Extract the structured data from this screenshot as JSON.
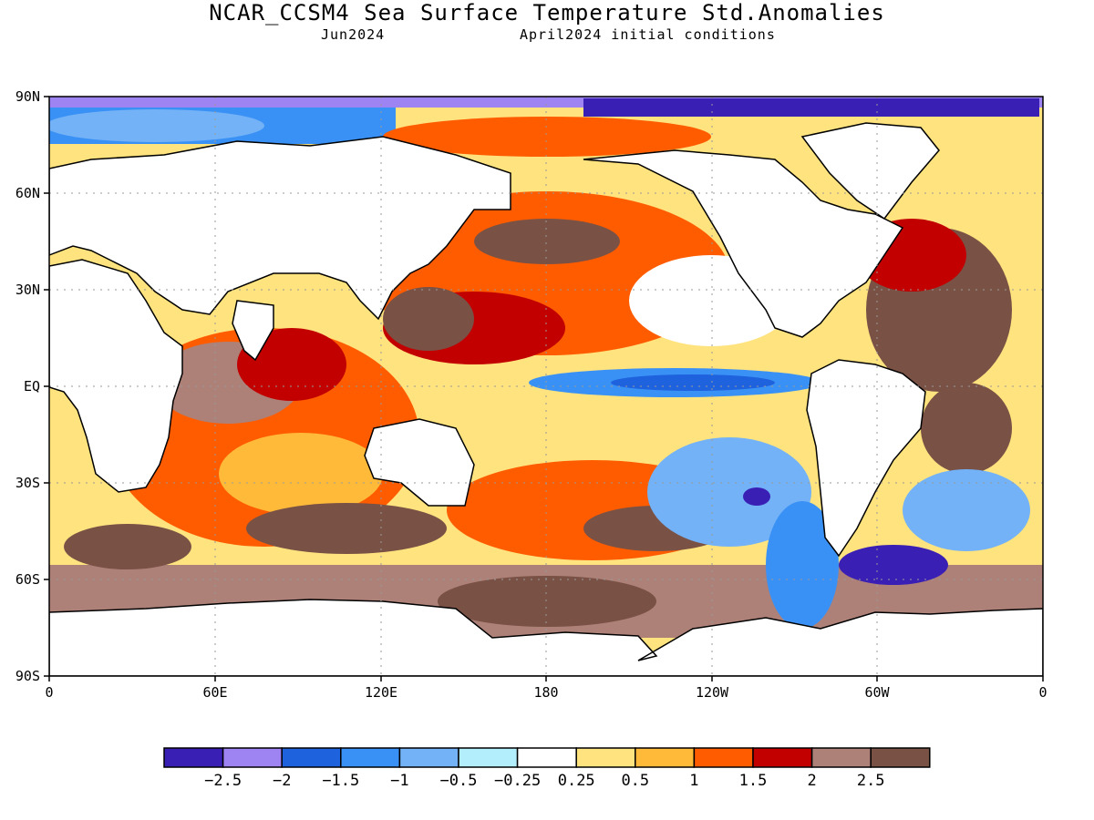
{
  "title": "NCAR_CCSM4 Sea Surface Temperature Std.Anomalies",
  "subtitle_left": "Jun2024",
  "subtitle_right": "April2024 initial conditions",
  "lat_labels": [
    "90N",
    "60N",
    "30N",
    "EQ",
    "30S",
    "60S",
    "90S"
  ],
  "lon_labels": [
    "0",
    "60E",
    "120E",
    "180",
    "120W",
    "60W",
    "0"
  ],
  "colorbar": {
    "colors": [
      "#3a1fb5",
      "#9d84f2",
      "#1f62de",
      "#3a91f5",
      "#73b2f7",
      "#b2eefc",
      "#ffffff",
      "#ffe37f",
      "#ffba3a",
      "#ff5c00",
      "#c20000",
      "#ad8178",
      "#7a5145"
    ],
    "labels": [
      "-2.5",
      "-2",
      "-1.5",
      "-1",
      "-0.5",
      "-0.25",
      "0.25",
      "0.5",
      "1",
      "1.5",
      "2",
      "2.5"
    ]
  }
}
